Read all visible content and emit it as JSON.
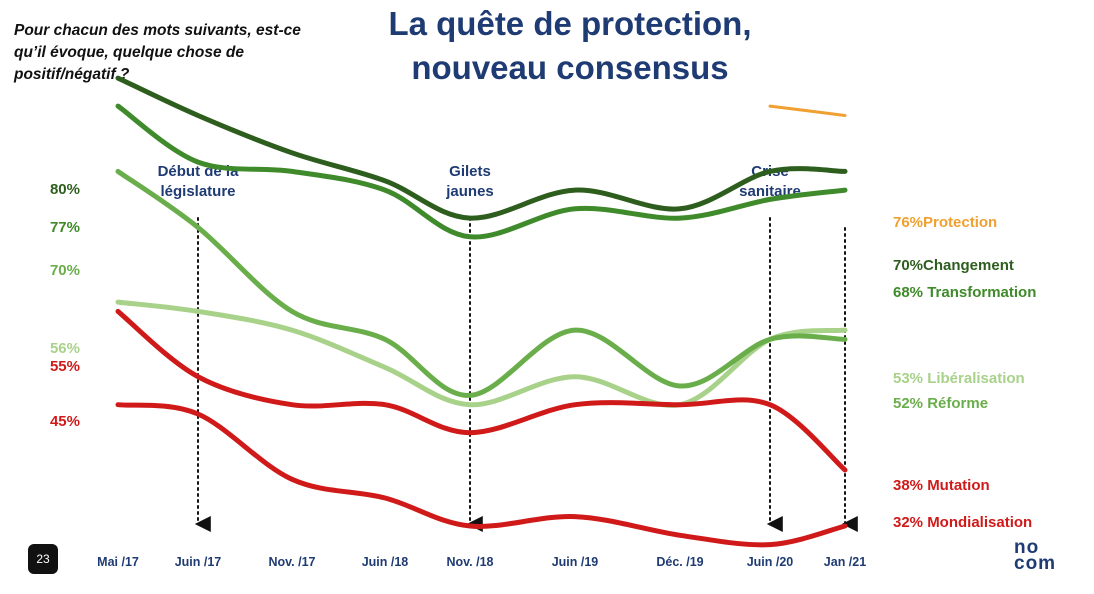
{
  "question": "Pour chacun des mots suivants, est-ce qu’il évoque, quelque chose de positif/négatif ?",
  "title_line1": "La quête de protection,",
  "title_line2": "nouveau consensus",
  "page_number": "23",
  "logo": {
    "line1": "no",
    "line2": "com"
  },
  "colors": {
    "title": "#1f3b73",
    "dark_green": "#2e5e1e",
    "green": "#3f8a2a",
    "mid_green": "#6aae4b",
    "light_green": "#a8d28a",
    "red": "#d01a1a",
    "orange": "#f0a030"
  },
  "chart_data": {
    "type": "line",
    "categories": [
      "Mai /17",
      "Juin /17",
      "Nov. /17",
      "Juin /18",
      "Nov. /18",
      "Juin /19",
      "Déc. /19",
      "Juin /20",
      "Jan /21"
    ],
    "series": [
      {
        "name": "Protection",
        "color": "#f0a030",
        "start_label": "",
        "end_label": "76%Protection",
        "values": [
          null,
          null,
          null,
          null,
          null,
          null,
          null,
          77,
          76
        ]
      },
      {
        "name": "Changement",
        "color": "#2e5e1e",
        "start_label": "80%",
        "end_label": "70%Changement",
        "values": [
          80,
          76,
          72,
          69,
          65,
          68,
          66,
          70,
          70
        ]
      },
      {
        "name": "Transformation",
        "color": "#3f8a2a",
        "start_label": "77%",
        "end_label": "68% Transformation",
        "values": [
          77,
          71,
          70,
          68,
          63,
          66,
          65,
          67,
          68
        ]
      },
      {
        "name": "Libéralisation",
        "color": "#a8d28a",
        "start_label": "56%",
        "end_label": "53% Libéralisation",
        "values": [
          56,
          55,
          53,
          49,
          45,
          48,
          45,
          52,
          53
        ]
      },
      {
        "name": "Réforme",
        "color": "#6aae4b",
        "start_label": "70%",
        "end_label": "52% Réforme",
        "values": [
          70,
          64,
          55,
          52,
          46,
          53,
          47,
          52,
          52
        ]
      },
      {
        "name": "Mutation",
        "color": "#d01a1a",
        "start_label": "55%",
        "end_label": "38% Mutation",
        "values": [
          55,
          48,
          45,
          45,
          42,
          45,
          45,
          45,
          38
        ]
      },
      {
        "name": "Mondialisation",
        "color": "#d01a1a",
        "start_label": "45%",
        "end_label": "32% Mondialisation",
        "values": [
          45,
          44,
          37,
          35,
          32,
          33,
          31,
          30,
          32
        ]
      }
    ],
    "annotations": [
      {
        "label_line1": "Début de la",
        "label_line2": "législature",
        "category_index": 1
      },
      {
        "label_line1": "Gilets",
        "label_line2": "jaunes",
        "category_index": 4
      },
      {
        "label_line1": "Crise",
        "label_line2": "sanitaire",
        "category_index": 7
      }
    ],
    "grid": false
  }
}
